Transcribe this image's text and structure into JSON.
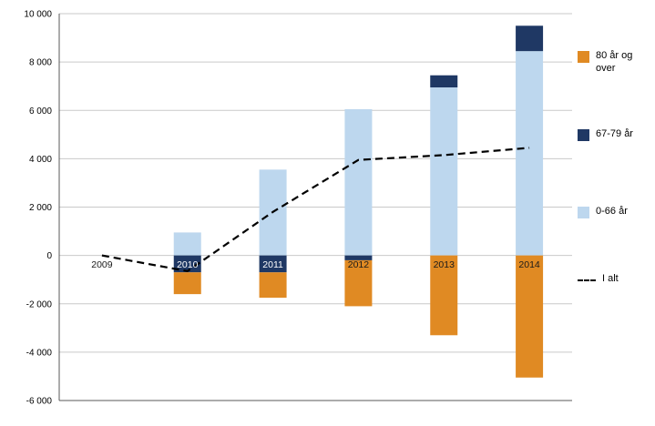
{
  "chart_data": {
    "type": "bar",
    "stacked": true,
    "title": "",
    "xlabel": "",
    "ylabel": "",
    "categories": [
      "2009",
      "2010",
      "2011",
      "2012",
      "2013",
      "2014"
    ],
    "series": [
      {
        "name": "0-66 år",
        "color": "#BDD7EE",
        "values": [
          0,
          950,
          3550,
          6050,
          6950,
          8450
        ]
      },
      {
        "name": "67-79 år",
        "color": "#1F3864",
        "values": [
          0,
          -700,
          -700,
          -200,
          500,
          1050
        ]
      },
      {
        "name": "80 år og over",
        "color": "#E08A23",
        "values": [
          0,
          -900,
          -1050,
          -1900,
          -3300,
          -5050
        ]
      }
    ],
    "line": {
      "name": "I alt",
      "color": "#000000",
      "dash": "8 5",
      "values": [
        0,
        -650,
        1800,
        3950,
        4150,
        4450
      ]
    },
    "ylim": [
      -6000,
      10000
    ],
    "grid": true,
    "legend_position": "right",
    "yticks": [
      {
        "value": 10000,
        "label": "10 000"
      },
      {
        "value": 8000,
        "label": "8 000"
      },
      {
        "value": 6000,
        "label": "6 000"
      },
      {
        "value": 4000,
        "label": "4 000"
      },
      {
        "value": 2000,
        "label": "2 000"
      },
      {
        "value": 0,
        "label": "0"
      },
      {
        "value": -2000,
        "label": "-2 000"
      },
      {
        "value": -4000,
        "label": "-4 000"
      },
      {
        "value": -6000,
        "label": "-6 000"
      }
    ]
  },
  "legend": {
    "items": [
      {
        "label": "80 år og over",
        "type": "square",
        "color": "#E08A23"
      },
      {
        "label": "67-79 år",
        "type": "square",
        "color": "#1F3864"
      },
      {
        "label": "0-66 år",
        "type": "square",
        "color": "#BDD7EE"
      },
      {
        "label": "I alt",
        "type": "dashed-line",
        "color": "#000000"
      }
    ]
  }
}
